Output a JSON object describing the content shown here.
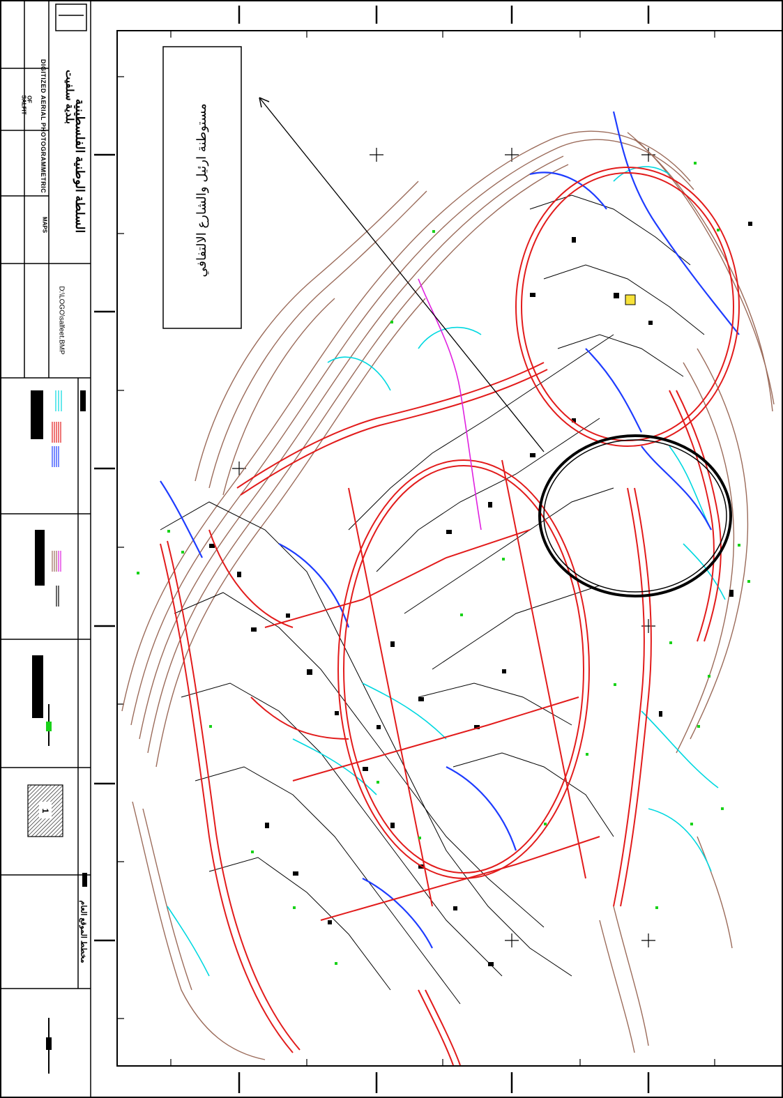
{
  "title_block": {
    "organization": "السلطة الوطنية الفلسطينية",
    "municipality": "بلدية سلفيت",
    "project_title": "DIGITIZED AERIAL PHOTOGRAMMETRIC",
    "project_sub": "OF",
    "project_sub2": "SALFIT",
    "map_label": "MAPS",
    "drawing_file": "D:\\LOGO\\salfeet.BMP",
    "sheet_number": "1",
    "bottom_legend_title": "مخطط الموقع العام"
  },
  "callout": {
    "text": "مستوطنة ارئيل والشارع الالتفافي"
  },
  "legend": {
    "colors": {
      "road": "#e21b1b",
      "contour": "#9b6b5a",
      "building": "#000000",
      "water": "#1e3cff",
      "cyan": "#00d8e0",
      "green": "#19d219",
      "magenta": "#e020e0"
    }
  }
}
